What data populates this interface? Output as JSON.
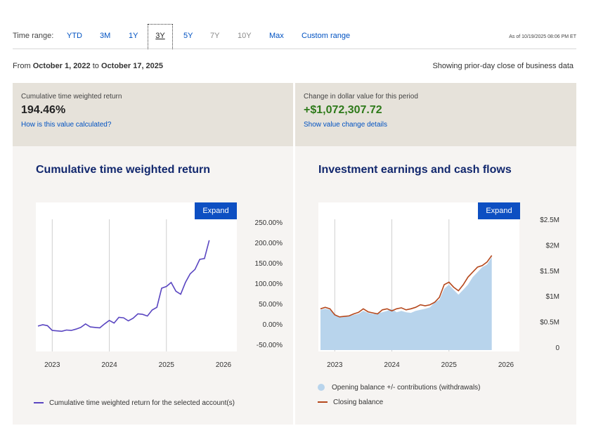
{
  "time_range": {
    "label": "Time range:",
    "options": [
      {
        "label": "YTD",
        "state": "active"
      },
      {
        "label": "3M",
        "state": "active"
      },
      {
        "label": "1Y",
        "state": "active"
      },
      {
        "label": "3Y",
        "state": "selected"
      },
      {
        "label": "5Y",
        "state": "active"
      },
      {
        "label": "7Y",
        "state": "disabled"
      },
      {
        "label": "10Y",
        "state": "disabled"
      },
      {
        "label": "Max",
        "state": "active"
      },
      {
        "label": "Custom range",
        "state": "active"
      }
    ],
    "as_of": "As of 10/19/2025 08:06 PM ET"
  },
  "period": {
    "from_label": "From",
    "from_date": "October 1, 2022",
    "to_label": "to",
    "to_date": "October 17, 2025",
    "showing": "Showing prior-day close of business data"
  },
  "summary": {
    "twr": {
      "caption": "Cumulative time weighted return",
      "value": "194.46%",
      "link": "How is this value calculated?"
    },
    "dollar": {
      "caption": "Change in dollar value for this period",
      "value": "+$1,072,307.72",
      "link": "Show value change details"
    }
  },
  "colors": {
    "accent_link": "#0052c2",
    "positive": "#2e7a1a",
    "title": "#12286e",
    "expand_button": "#0d4fc2",
    "twr_line": "#5a46c1",
    "opening_area": "#b8d4ec",
    "closing_line": "#b5481d"
  },
  "twr_chart": {
    "title": "Cumulative time weighted return",
    "expand_label": "Expand",
    "legend": "Cumulative time weighted return for the selected account(s)"
  },
  "flows_chart": {
    "title": "Investment earnings and cash flows",
    "expand_label": "Expand",
    "legend_opening": "Opening balance +/- contributions (withdrawals)",
    "legend_closing": "Closing balance"
  },
  "chart_data": [
    {
      "type": "line",
      "title": "Cumulative time weighted return",
      "xlabel": "",
      "ylabel": "",
      "x_ticks": [
        "2023",
        "2024",
        "2025",
        "2026"
      ],
      "y_ticks": [
        "250.00%",
        "200.00%",
        "150.00%",
        "100.00%",
        "50.00%",
        "0.00%",
        "-50.00%"
      ],
      "ylim": [
        -50,
        250
      ],
      "x": [
        "2022-10",
        "2022-11",
        "2022-12",
        "2023-01",
        "2023-02",
        "2023-03",
        "2023-04",
        "2023-05",
        "2023-06",
        "2023-07",
        "2023-08",
        "2023-09",
        "2023-10",
        "2023-11",
        "2023-12",
        "2024-01",
        "2024-02",
        "2024-03",
        "2024-04",
        "2024-05",
        "2024-06",
        "2024-07",
        "2024-08",
        "2024-09",
        "2024-10",
        "2024-11",
        "2024-12",
        "2025-01",
        "2025-02",
        "2025-03",
        "2025-04",
        "2025-05",
        "2025-06",
        "2025-07",
        "2025-08",
        "2025-09",
        "2025-10"
      ],
      "series": [
        {
          "name": "Cumulative time weighted return for the selected account(s)",
          "values": [
            5,
            8,
            6,
            -5,
            -6,
            -7,
            -4,
            -5,
            -2,
            2,
            10,
            3,
            2,
            1,
            10,
            18,
            12,
            25,
            24,
            17,
            23,
            33,
            32,
            28,
            42,
            48,
            92,
            96,
            105,
            85,
            78,
            105,
            125,
            135,
            158,
            160,
            202
          ]
        }
      ],
      "grid": "vertical",
      "legend_position": "bottom"
    },
    {
      "type": "area",
      "title": "Investment earnings and cash flows",
      "xlabel": "",
      "ylabel": "",
      "x_ticks": [
        "2023",
        "2024",
        "2025",
        "2026"
      ],
      "y_ticks": [
        "$2.5M",
        "$2M",
        "$1.5M",
        "$1M",
        "$0.5M",
        "0"
      ],
      "ylim": [
        0,
        2.6
      ],
      "x": [
        "2022-10",
        "2022-11",
        "2022-12",
        "2023-01",
        "2023-02",
        "2023-03",
        "2023-04",
        "2023-05",
        "2023-06",
        "2023-07",
        "2023-08",
        "2023-09",
        "2023-10",
        "2023-11",
        "2023-12",
        "2024-01",
        "2024-02",
        "2024-03",
        "2024-04",
        "2024-05",
        "2024-06",
        "2024-07",
        "2024-08",
        "2024-09",
        "2024-10",
        "2024-11",
        "2024-12",
        "2025-01",
        "2025-02",
        "2025-03",
        "2025-04",
        "2025-05",
        "2025-06",
        "2025-07",
        "2025-08",
        "2025-09",
        "2025-10"
      ],
      "series": [
        {
          "name": "Opening balance +/- contributions (withdrawals)",
          "kind": "area",
          "values": [
            0.8,
            0.82,
            0.8,
            0.72,
            0.65,
            0.66,
            0.67,
            0.7,
            0.72,
            0.78,
            0.74,
            0.72,
            0.73,
            0.75,
            0.78,
            0.82,
            0.75,
            0.78,
            0.75,
            0.74,
            0.78,
            0.8,
            0.82,
            0.85,
            0.95,
            1.0,
            1.22,
            1.3,
            1.2,
            1.1,
            1.2,
            1.3,
            1.45,
            1.55,
            1.65,
            1.7,
            1.85
          ]
        },
        {
          "name": "Closing balance",
          "kind": "line",
          "values": [
            0.82,
            0.85,
            0.82,
            0.7,
            0.66,
            0.67,
            0.68,
            0.72,
            0.75,
            0.82,
            0.76,
            0.74,
            0.72,
            0.8,
            0.82,
            0.78,
            0.82,
            0.84,
            0.8,
            0.82,
            0.85,
            0.9,
            0.88,
            0.9,
            0.95,
            1.05,
            1.3,
            1.35,
            1.25,
            1.18,
            1.3,
            1.45,
            1.55,
            1.65,
            1.68,
            1.75,
            1.88
          ]
        }
      ],
      "grid": "vertical",
      "legend_position": "bottom"
    }
  ]
}
